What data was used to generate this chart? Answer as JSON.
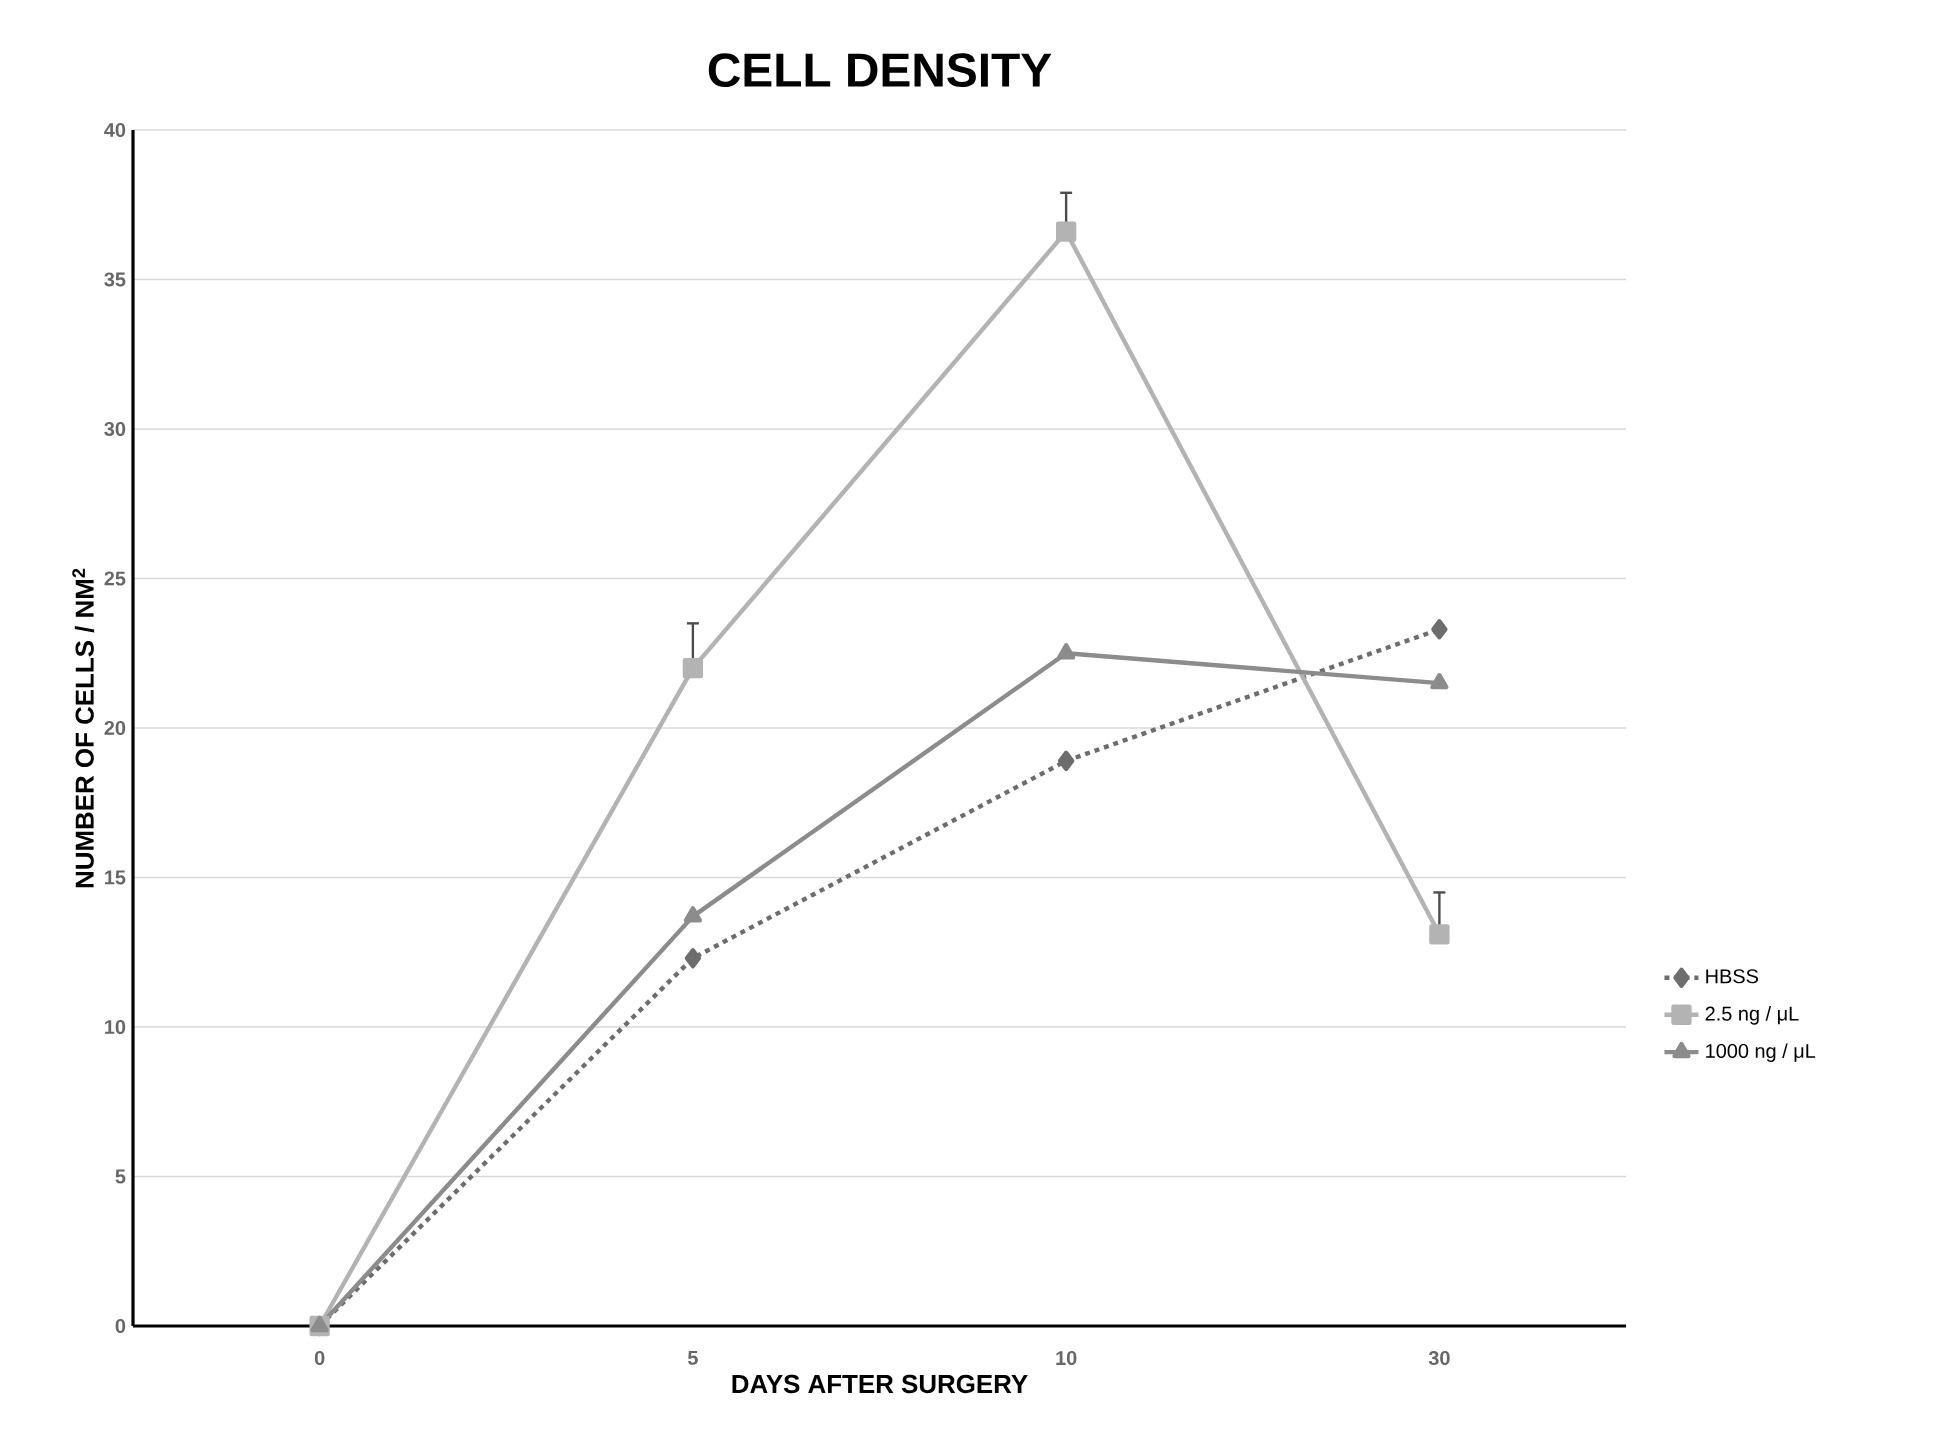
{
  "chart_data": {
    "type": "line",
    "title": "CELL DENSITY",
    "xlabel": "DAYS AFTER SURGERY",
    "ylabel": "NUMBER OF CELLS / NM$^{2}$",
    "categories": [
      "0",
      "5",
      "10",
      "30"
    ],
    "series": [
      {
        "name": "HBSS",
        "color": "#6d6d6d",
        "values": [
          0,
          12.3,
          18.9,
          23.3
        ],
        "marker": "diamond",
        "line_style": "dotted"
      },
      {
        "name": "2.5 ng / μL",
        "color": "#b3b3b3",
        "values": [
          0,
          22.0,
          36.6,
          13.1
        ],
        "errors": [
          null,
          [
            22.0,
            23.5
          ],
          [
            36.6,
            37.9
          ],
          [
            13.1,
            14.5
          ]
        ],
        "marker": "square",
        "line_style": "solid"
      },
      {
        "name": "1000 ng / μL",
        "color": "#8c8c8c",
        "values": [
          0,
          13.7,
          22.5,
          21.5
        ],
        "marker": "triangle",
        "line_style": "solid"
      }
    ],
    "ylim": [
      0,
      40
    ],
    "yticks": [
      0,
      5,
      10,
      15,
      20,
      25,
      30,
      35,
      40
    ],
    "grid": "y",
    "legend": "right"
  }
}
